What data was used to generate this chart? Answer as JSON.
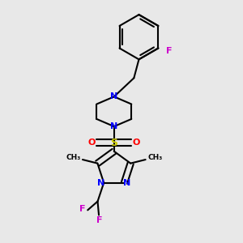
{
  "bg_color": "#e8e8e8",
  "bond_color": "#000000",
  "N_color": "#0000ff",
  "O_color": "#ff0000",
  "S_color": "#cccc00",
  "F_color": "#cc00cc",
  "line_width": 1.5,
  "figsize": [
    3.0,
    3.0
  ],
  "dpi": 100,
  "xlim": [
    0.1,
    0.9
  ],
  "ylim": [
    0.02,
    0.98
  ]
}
